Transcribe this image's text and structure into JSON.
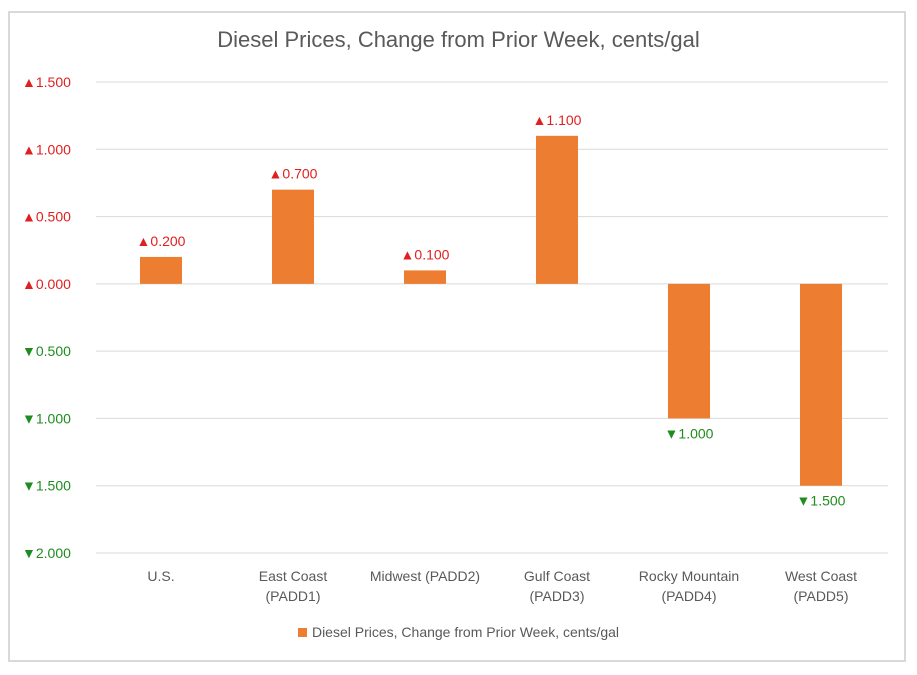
{
  "chart_data": {
    "type": "bar",
    "title": "Diesel Prices, Change from Prior Week, cents/gal",
    "xlabel": "",
    "ylabel": "",
    "categories": [
      "U.S.",
      "East Coast (PADD1)",
      "Midwest (PADD2)",
      "Gulf Coast (PADD3)",
      "Rocky Mountain (PADD4)",
      "West Coast (PADD5)"
    ],
    "category_lines": [
      [
        "U.S."
      ],
      [
        "East Coast",
        "(PADD1)"
      ],
      [
        "Midwest (PADD2)"
      ],
      [
        "Gulf Coast",
        "(PADD3)"
      ],
      [
        "Rocky Mountain",
        "(PADD4)"
      ],
      [
        "West Coast",
        "(PADD5)"
      ]
    ],
    "series": [
      {
        "name": "Diesel Prices, Change from Prior Week, cents/gal",
        "color": "#ED7D31",
        "values": [
          0.2,
          0.7,
          0.1,
          1.1,
          -1.0,
          -1.5
        ]
      }
    ],
    "data_labels": [
      "▲0.200",
      "▲0.700",
      "▲0.100",
      "▲1.100",
      "▼1.000",
      "▼1.500"
    ],
    "ylim": [
      -2.0,
      1.5
    ],
    "yticks": [
      1.5,
      1.0,
      0.5,
      0.0,
      -0.5,
      -1.0,
      -1.5,
      -2.0
    ],
    "ytick_labels": [
      "▲1.500",
      "▲1.000",
      "▲0.500",
      "▲0.000",
      "▼0.500",
      "▼1.000",
      "▼1.500",
      "▼2.000"
    ],
    "positive_color": "#E02020",
    "negative_color": "#1E8C1E",
    "grid": true,
    "legend_position": "bottom"
  }
}
